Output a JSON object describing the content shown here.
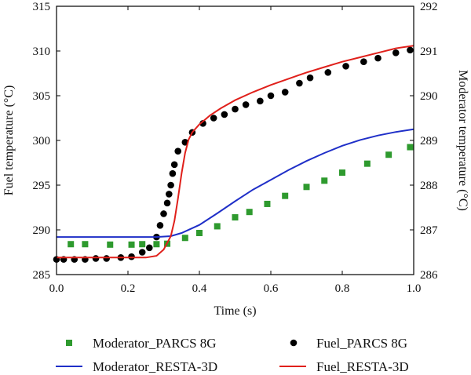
{
  "chart_data": {
    "type": "line",
    "xlabel": "Time (s)",
    "ylabel_left": "Fuel temperature (°C)",
    "ylabel_right": "Moderator temperature (°C)",
    "xlim": [
      0.0,
      1.0
    ],
    "ylim_left": [
      285,
      315
    ],
    "ylim_right": [
      286,
      292
    ],
    "x_ticks": [
      "0.0",
      "0.2",
      "0.4",
      "0.6",
      "0.8",
      "1.0"
    ],
    "y_left_ticks": [
      "285",
      "290",
      "295",
      "300",
      "305",
      "310",
      "315"
    ],
    "y_right_ticks": [
      "286",
      "287",
      "288",
      "289",
      "290",
      "291",
      "292"
    ],
    "grid": false,
    "legend_position": "bottom",
    "colors": {
      "moderator_parcs": "#2e9a2e",
      "fuel_parcs": "#000000",
      "moderator_resta": "#1f2fc8",
      "fuel_resta": "#e0201b"
    },
    "series": [
      {
        "name": "Moderator_PARCS 8G",
        "axis": "right",
        "style": "square-marker",
        "x": [
          0.04,
          0.08,
          0.15,
          0.21,
          0.24,
          0.28,
          0.31,
          0.36,
          0.4,
          0.45,
          0.5,
          0.54,
          0.59,
          0.64,
          0.7,
          0.75,
          0.8,
          0.87,
          0.93,
          0.99
        ],
        "y": [
          286.68,
          286.68,
          286.67,
          286.67,
          286.68,
          286.68,
          286.69,
          286.82,
          286.93,
          287.08,
          287.28,
          287.4,
          287.58,
          287.76,
          287.96,
          288.1,
          288.28,
          288.48,
          288.68,
          288.85
        ]
      },
      {
        "name": "Fuel_PARCS 8G",
        "axis": "left",
        "style": "circle-marker",
        "x": [
          0.0,
          0.02,
          0.05,
          0.08,
          0.11,
          0.14,
          0.18,
          0.21,
          0.24,
          0.26,
          0.28,
          0.29,
          0.3,
          0.31,
          0.315,
          0.32,
          0.325,
          0.33,
          0.34,
          0.36,
          0.38,
          0.41,
          0.44,
          0.47,
          0.5,
          0.53,
          0.57,
          0.6,
          0.64,
          0.68,
          0.71,
          0.76,
          0.81,
          0.86,
          0.9,
          0.95,
          0.99
        ],
        "y": [
          286.7,
          286.7,
          286.7,
          286.7,
          286.8,
          286.8,
          286.9,
          287.0,
          287.5,
          288.0,
          289.2,
          290.5,
          291.8,
          293.0,
          294.0,
          295.0,
          296.3,
          297.3,
          298.8,
          299.8,
          300.9,
          301.9,
          302.5,
          302.9,
          303.5,
          304.0,
          304.4,
          305.0,
          305.4,
          306.4,
          307.0,
          307.6,
          308.3,
          308.8,
          309.2,
          309.8,
          310.1
        ]
      },
      {
        "name": "Moderator_RESTA-3D",
        "axis": "right",
        "style": "line",
        "x": [
          0.0,
          0.28,
          0.32,
          0.35,
          0.4,
          0.45,
          0.5,
          0.55,
          0.6,
          0.65,
          0.7,
          0.75,
          0.8,
          0.85,
          0.9,
          0.95,
          1.0
        ],
        "y": [
          286.84,
          286.84,
          286.86,
          286.93,
          287.11,
          287.37,
          287.64,
          287.9,
          288.12,
          288.34,
          288.54,
          288.72,
          288.88,
          289.01,
          289.11,
          289.19,
          289.25
        ]
      },
      {
        "name": "Fuel_RESTA-3D",
        "axis": "left",
        "style": "line",
        "x": [
          0.0,
          0.25,
          0.28,
          0.3,
          0.32,
          0.33,
          0.34,
          0.35,
          0.36,
          0.37,
          0.38,
          0.4,
          0.43,
          0.46,
          0.5,
          0.55,
          0.6,
          0.65,
          0.7,
          0.75,
          0.8,
          0.85,
          0.9,
          0.95,
          1.0
        ],
        "y": [
          286.9,
          286.9,
          287.1,
          287.8,
          289.3,
          291.0,
          293.5,
          296.3,
          298.6,
          300.1,
          300.9,
          301.8,
          302.8,
          303.6,
          304.5,
          305.4,
          306.2,
          306.9,
          307.6,
          308.2,
          308.8,
          309.3,
          309.8,
          310.3,
          310.6
        ]
      }
    ]
  }
}
